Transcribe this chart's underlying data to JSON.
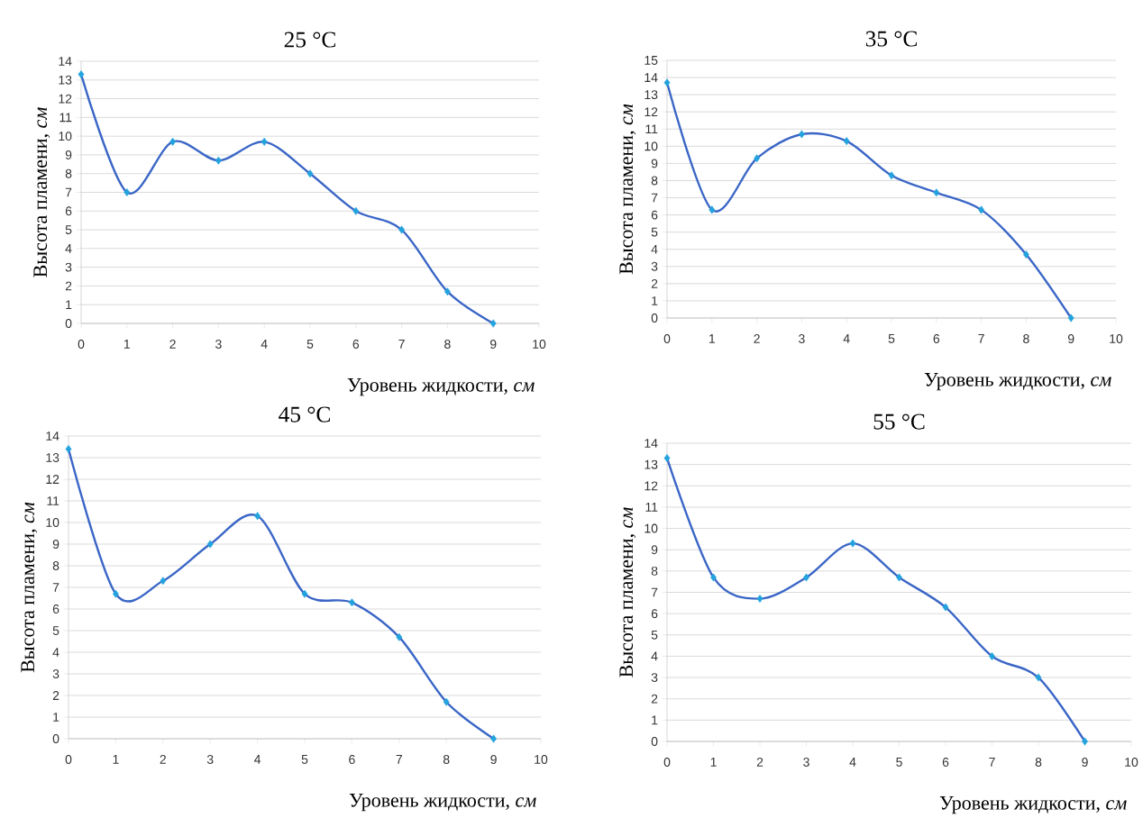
{
  "chart_data": [
    {
      "type": "line",
      "title": "25 °C",
      "xlabel": "Уровень жидкости, *см*",
      "ylabel": "Высота пламени, *см*",
      "x": [
        0,
        1,
        2,
        3,
        4,
        5,
        6,
        7,
        8,
        9
      ],
      "values": [
        13.3,
        7,
        9.7,
        8.7,
        9.7,
        8,
        6,
        5,
        1.7,
        0
      ],
      "color": "#3a66c6",
      "xlim": [
        0,
        10
      ],
      "ylim": [
        0,
        14
      ],
      "xticks": [
        0,
        1,
        2,
        3,
        4,
        5,
        6,
        7,
        8,
        9,
        10
      ],
      "yticks": [
        0,
        1,
        2,
        3,
        4,
        5,
        6,
        7,
        8,
        9,
        10,
        11,
        12,
        13,
        14
      ],
      "grid": "y",
      "marker": "diamond"
    },
    {
      "type": "line",
      "title": "35 °C",
      "xlabel": "Уровень жидкости, *см*",
      "ylabel": "Высота пламени, *см*",
      "x": [
        0,
        1,
        2,
        3,
        4,
        5,
        6,
        7,
        8,
        9
      ],
      "values": [
        13.7,
        6.3,
        9.3,
        10.7,
        10.3,
        8.3,
        7.3,
        6.3,
        3.7,
        0
      ],
      "color": "#3a66c6",
      "xlim": [
        0,
        10
      ],
      "ylim": [
        0,
        15
      ],
      "xticks": [
        0,
        1,
        2,
        3,
        4,
        5,
        6,
        7,
        8,
        9,
        10
      ],
      "yticks": [
        0,
        1,
        2,
        3,
        4,
        5,
        6,
        7,
        8,
        9,
        10,
        11,
        12,
        13,
        14,
        15
      ],
      "grid": "y",
      "marker": "diamond"
    },
    {
      "type": "line",
      "title": "45 °C",
      "xlabel": "Уровень жидкости, *см*",
      "ylabel": "Высота пламени, *см*",
      "x": [
        0,
        1,
        2,
        3,
        4,
        5,
        6,
        7,
        8,
        9
      ],
      "values": [
        13.4,
        6.7,
        7.3,
        9,
        10.3,
        6.7,
        6.3,
        4.7,
        1.7,
        0
      ],
      "color": "#3a66c6",
      "xlim": [
        0,
        10
      ],
      "ylim": [
        0,
        14
      ],
      "xticks": [
        0,
        1,
        2,
        3,
        4,
        5,
        6,
        7,
        8,
        9,
        10
      ],
      "yticks": [
        0,
        1,
        2,
        3,
        4,
        5,
        6,
        7,
        8,
        9,
        10,
        11,
        12,
        13,
        14
      ],
      "grid": "y",
      "marker": "diamond"
    },
    {
      "type": "line",
      "title": "55 °C",
      "xlabel": "Уровень жидкости, *см*",
      "ylabel": "Высота пламени, *см*",
      "x": [
        0,
        1,
        2,
        3,
        4,
        5,
        6,
        7,
        8,
        9
      ],
      "values": [
        13.3,
        7.7,
        6.7,
        7.7,
        9.3,
        7.7,
        6.3,
        4,
        3,
        0
      ],
      "color": "#3a66c6",
      "xlim": [
        0,
        10
      ],
      "ylim": [
        0,
        14
      ],
      "xticks": [
        0,
        1,
        2,
        3,
        4,
        5,
        6,
        7,
        8,
        9,
        10
      ],
      "yticks": [
        0,
        1,
        2,
        3,
        4,
        5,
        6,
        7,
        8,
        9,
        10,
        11,
        12,
        13,
        14
      ],
      "grid": "y",
      "marker": "diamond"
    }
  ]
}
